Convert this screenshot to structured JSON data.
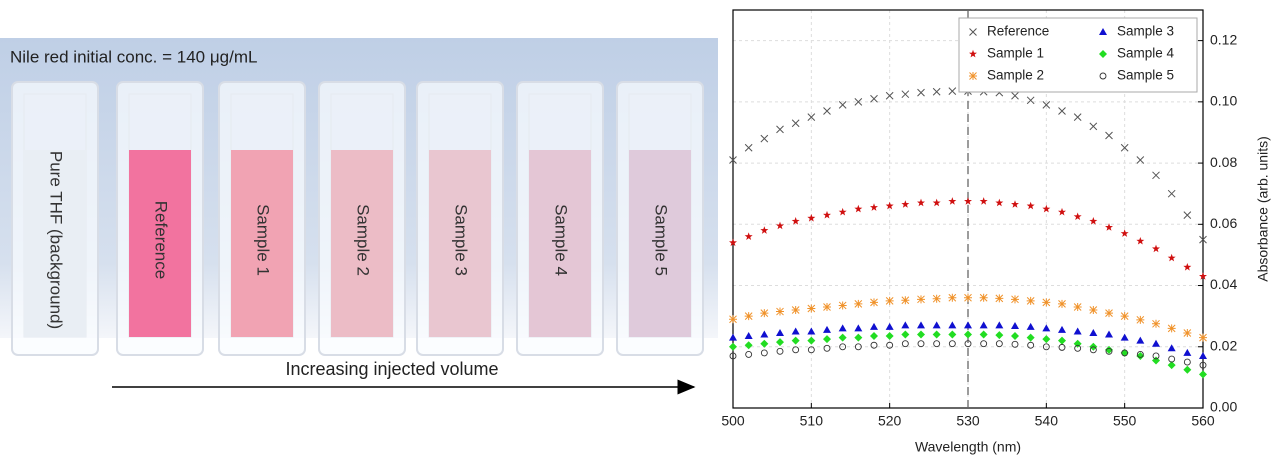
{
  "photo": {
    "caption": "Nile red initial conc. = 140 μg/mL",
    "cuvettes": [
      {
        "label": "Pure THF (background)",
        "color": "#e9eef4"
      },
      {
        "label": "Reference",
        "color": "#f2739f"
      },
      {
        "label": "Sample 1",
        "color": "#f1a3b3"
      },
      {
        "label": "Sample 2",
        "color": "#ecbcc6"
      },
      {
        "label": "Sample 3",
        "color": "#e9c6d0"
      },
      {
        "label": "Sample 4",
        "color": "#e4c6d5"
      },
      {
        "label": "Sample 5",
        "color": "#dfcadb"
      }
    ],
    "arrow_label": "Increasing injected volume"
  },
  "chart_data": {
    "type": "scatter",
    "x_label": "Wavelength (nm)",
    "y_label": "Absorbance (arb. units)",
    "xlim": [
      500,
      560
    ],
    "xticks": [
      500,
      510,
      520,
      530,
      540,
      550,
      560
    ],
    "ylim": [
      0,
      0.13
    ],
    "yticks": [
      {
        "value": 0,
        "label": "0.00"
      },
      {
        "value": 0.02,
        "label": "0.02"
      },
      {
        "value": 0.04,
        "label": "0.04"
      },
      {
        "value": 0.06,
        "label": "0.06"
      },
      {
        "value": 0.08,
        "label": "0.08"
      },
      {
        "value": 0.1,
        "label": "0.10"
      },
      {
        "value": 0.12,
        "label": "0.12"
      }
    ],
    "y_axis_side": "right",
    "grid": true,
    "vline": 530,
    "legend": "upper right",
    "x": [
      500,
      502,
      504,
      506,
      508,
      510,
      512,
      514,
      516,
      518,
      520,
      522,
      524,
      526,
      528,
      530,
      532,
      534,
      536,
      538,
      540,
      542,
      544,
      546,
      548,
      550,
      552,
      554,
      556,
      558,
      560
    ],
    "series": [
      {
        "name": "Reference",
        "color": "#555555",
        "marker": "x",
        "values": [
          0.081,
          0.085,
          0.088,
          0.091,
          0.093,
          0.095,
          0.097,
          0.099,
          0.1,
          0.101,
          0.102,
          0.1025,
          0.103,
          0.1033,
          0.1035,
          0.1035,
          0.1033,
          0.103,
          0.102,
          0.1005,
          0.099,
          0.097,
          0.095,
          0.092,
          0.089,
          0.085,
          0.081,
          0.076,
          0.07,
          0.063,
          0.055
        ]
      },
      {
        "name": "Sample 1",
        "color": "#d01010",
        "marker": "star",
        "values": [
          0.054,
          0.056,
          0.058,
          0.0595,
          0.061,
          0.062,
          0.063,
          0.064,
          0.065,
          0.0655,
          0.066,
          0.0665,
          0.067,
          0.067,
          0.0675,
          0.0675,
          0.0675,
          0.067,
          0.0665,
          0.066,
          0.065,
          0.064,
          0.0625,
          0.061,
          0.059,
          0.057,
          0.0545,
          0.052,
          0.049,
          0.046,
          0.043
        ]
      },
      {
        "name": "Sample 2",
        "color": "#f0922a",
        "marker": "asterisk",
        "values": [
          0.029,
          0.03,
          0.031,
          0.0315,
          0.032,
          0.0325,
          0.033,
          0.0335,
          0.034,
          0.0345,
          0.035,
          0.0352,
          0.0355,
          0.0357,
          0.036,
          0.036,
          0.036,
          0.0358,
          0.0355,
          0.035,
          0.0345,
          0.034,
          0.033,
          0.032,
          0.031,
          0.03,
          0.0288,
          0.0275,
          0.026,
          0.0245,
          0.023
        ]
      },
      {
        "name": "Sample 3",
        "color": "#1010d0",
        "marker": "triangle",
        "values": [
          0.023,
          0.0235,
          0.024,
          0.0245,
          0.025,
          0.025,
          0.0255,
          0.026,
          0.026,
          0.0265,
          0.0265,
          0.027,
          0.027,
          0.027,
          0.027,
          0.027,
          0.027,
          0.027,
          0.0268,
          0.0265,
          0.026,
          0.0255,
          0.025,
          0.0245,
          0.024,
          0.023,
          0.022,
          0.021,
          0.0195,
          0.018,
          0.017
        ]
      },
      {
        "name": "Sample 4",
        "color": "#22dd22",
        "marker": "diamond",
        "values": [
          0.02,
          0.0205,
          0.021,
          0.0215,
          0.022,
          0.022,
          0.0225,
          0.023,
          0.023,
          0.0235,
          0.0235,
          0.024,
          0.024,
          0.024,
          0.024,
          0.024,
          0.024,
          0.0238,
          0.0235,
          0.023,
          0.0225,
          0.022,
          0.021,
          0.02,
          0.019,
          0.018,
          0.017,
          0.0155,
          0.014,
          0.0125,
          0.011
        ]
      },
      {
        "name": "Sample 5",
        "color": "#333333",
        "marker": "circle-open",
        "values": [
          0.017,
          0.0175,
          0.018,
          0.0185,
          0.019,
          0.019,
          0.0195,
          0.02,
          0.02,
          0.0205,
          0.0205,
          0.021,
          0.021,
          0.021,
          0.021,
          0.021,
          0.021,
          0.021,
          0.0208,
          0.0205,
          0.02,
          0.0198,
          0.0195,
          0.019,
          0.0185,
          0.018,
          0.0175,
          0.017,
          0.016,
          0.015,
          0.014
        ]
      }
    ]
  }
}
